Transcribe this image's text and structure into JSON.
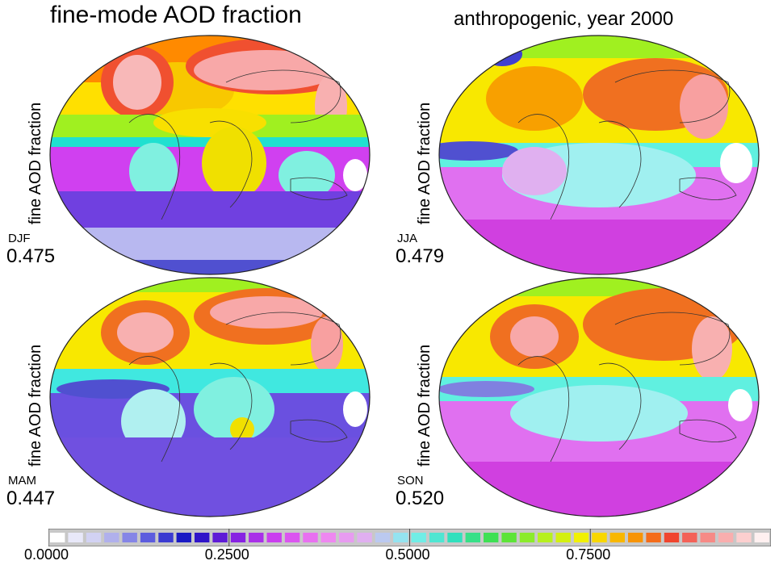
{
  "titles": {
    "left": "fine-mode AOD fraction",
    "right": "anthropogenic, year 2000"
  },
  "y_label": "fine AOD fraction",
  "panels": [
    {
      "season": "DJF",
      "mean": "0.475"
    },
    {
      "season": "JJA",
      "mean": "0.479"
    },
    {
      "season": "MAM",
      "mean": "0.447"
    },
    {
      "season": "SON",
      "mean": "0.520"
    }
  ],
  "colorbar": {
    "ticks": [
      {
        "label": "0.0000",
        "value": 0.0
      },
      {
        "label": "0.2500",
        "value": 0.25
      },
      {
        "label": "0.5000",
        "value": 0.5
      },
      {
        "label": "0.7500",
        "value": 0.75
      }
    ],
    "range": [
      0,
      1
    ],
    "stops": [
      "#ffffff",
      "#c8c8f0",
      "#6060e0",
      "#1010c0",
      "#8020e0",
      "#d040f0",
      "#f080f0",
      "#e0b0f0",
      "#80f0f0",
      "#30e0c0",
      "#40e040",
      "#b0f020",
      "#f8f000",
      "#f8a000",
      "#f04030",
      "#f8a0a0",
      "#fff0f0"
    ]
  }
}
